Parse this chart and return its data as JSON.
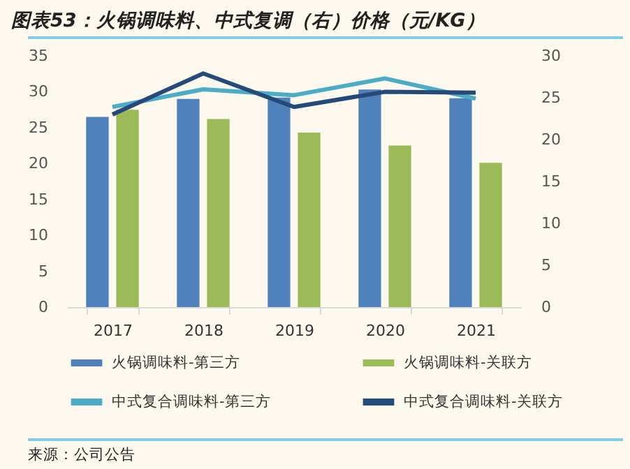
{
  "chart_data": {
    "type": "bar",
    "title": "图表53：火锅调味料、中式复调（右）价格（元/KG）",
    "categories": [
      "2017",
      "2018",
      "2019",
      "2020",
      "2021"
    ],
    "series": [
      {
        "name": "火锅调味料-第三方",
        "color": "#4f81bd",
        "values": [
          26.5,
          29.0,
          29.2,
          30.3,
          29.1
        ]
      },
      {
        "name": "火锅调味料-关联方",
        "color": "#9bbb59",
        "values": [
          27.5,
          26.2,
          24.3,
          22.5,
          20.1
        ]
      },
      {
        "name": "中式复合调味料-第三方",
        "color": "#4bacc6",
        "type": "line",
        "axis": "y2",
        "values": [
          23.9,
          26.0,
          25.3,
          27.3,
          24.9
        ]
      },
      {
        "name": "中式复合调味料-关联方",
        "color": "#254a7a",
        "type": "line",
        "axis": "y2",
        "values": [
          23.0,
          27.9,
          23.9,
          25.7,
          25.6
        ]
      }
    ],
    "ylim": [
      0,
      35
    ],
    "yticks": [
      0,
      5,
      10,
      15,
      20,
      25,
      30,
      35
    ],
    "y2lim": [
      0,
      30
    ],
    "y2ticks": [
      0,
      5,
      10,
      15,
      20,
      25,
      30
    ],
    "legend": "bottom",
    "annotations": [
      "来源：公司公告"
    ]
  }
}
